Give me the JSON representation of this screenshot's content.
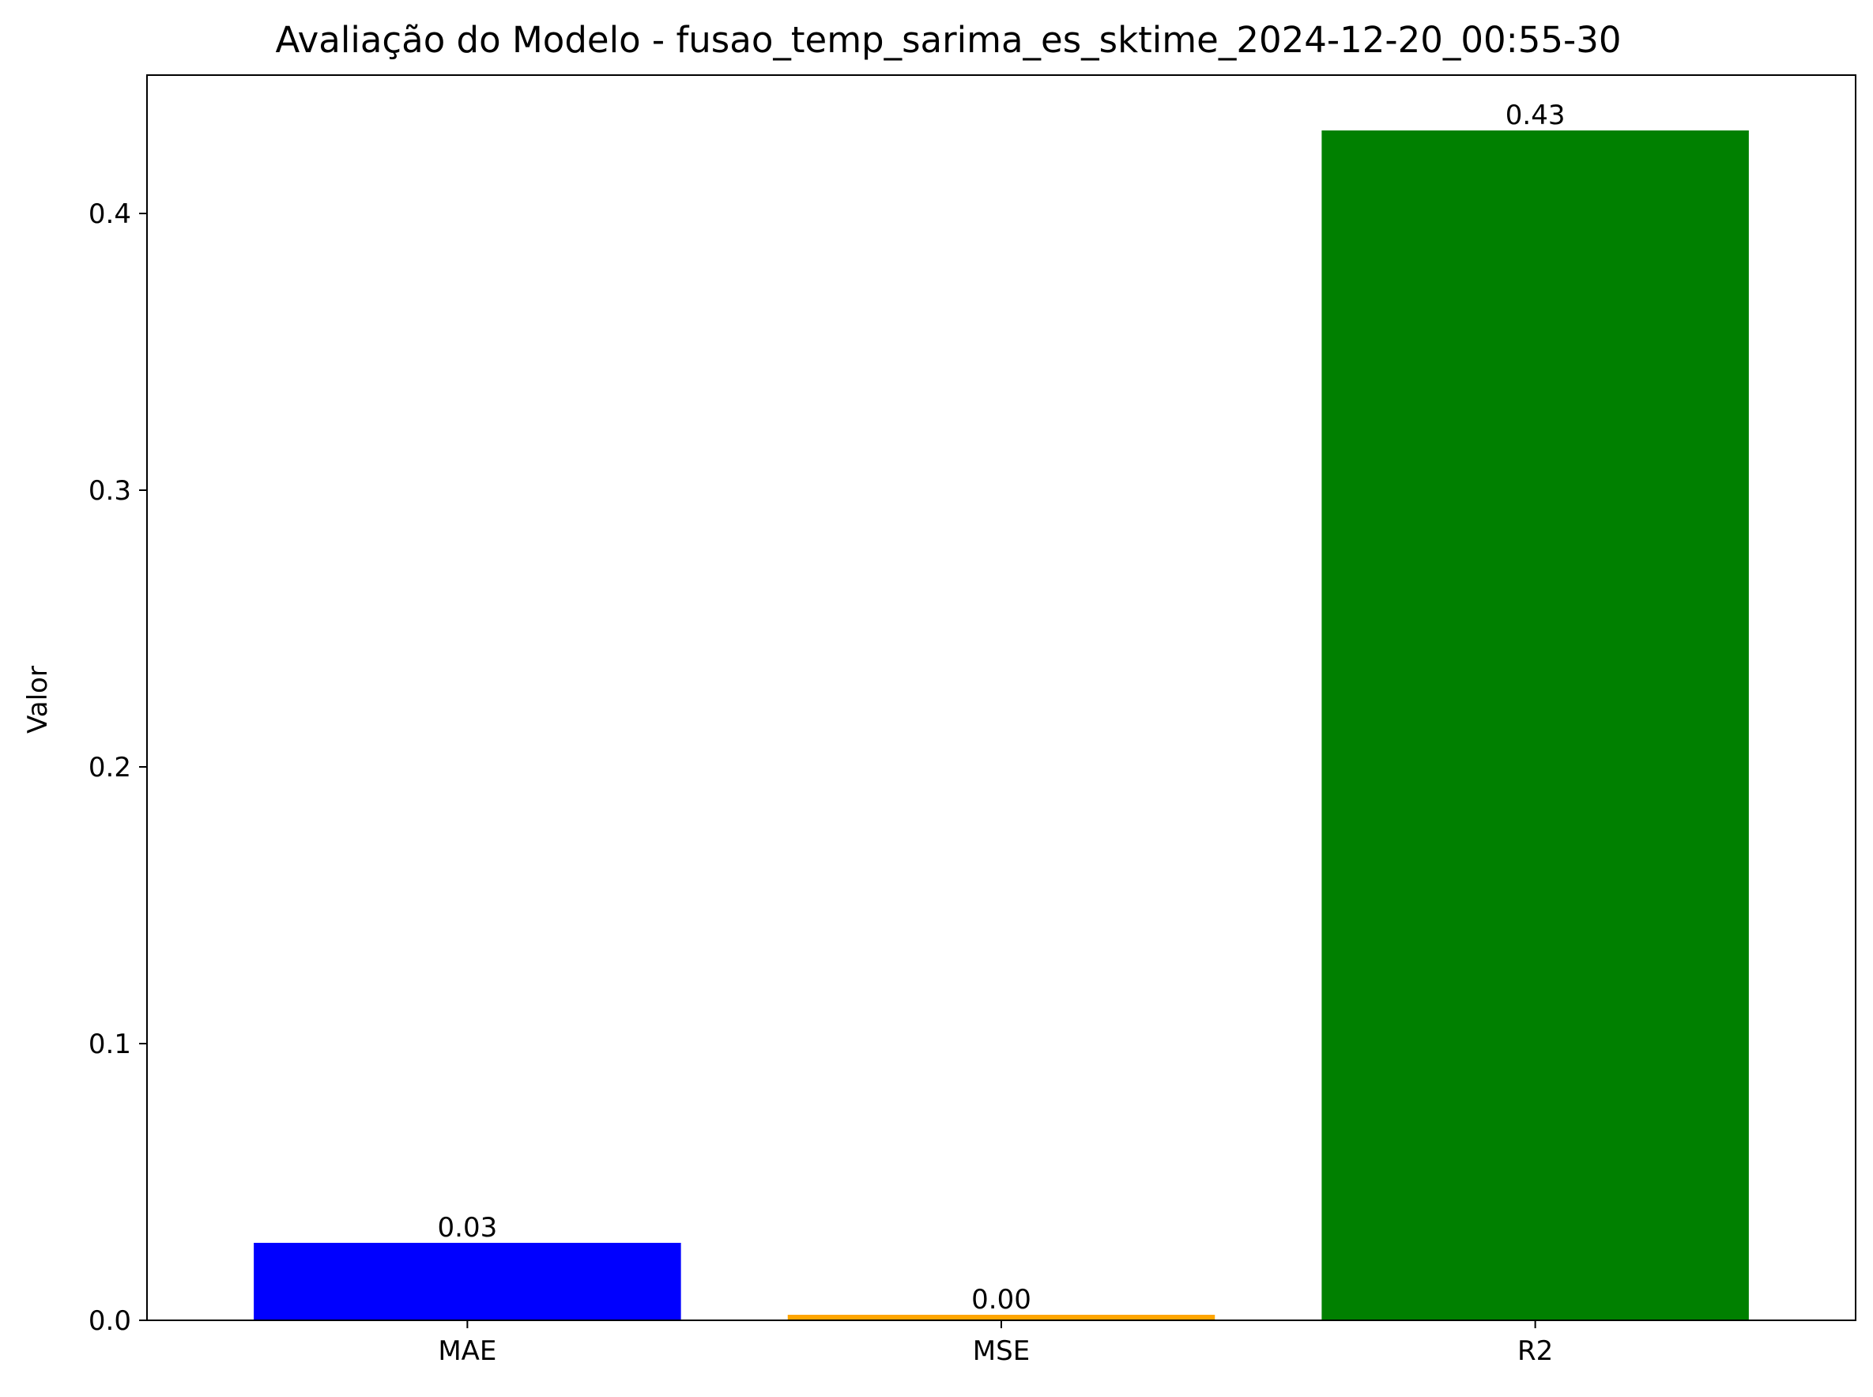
{
  "chart_data": {
    "type": "bar",
    "title": "Avaliação do Modelo - fusao_temp_sarima_es_sktime_2024-12-20_00:55-30",
    "xlabel": "",
    "ylabel": "Valor",
    "categories": [
      "MAE",
      "MSE",
      "R2"
    ],
    "values": [
      0.028,
      0.002,
      0.43
    ],
    "value_labels": [
      "0.03",
      "0.00",
      "0.43"
    ],
    "colors": [
      "#0000ff",
      "#ffa500",
      "#008000"
    ],
    "ylim": [
      0,
      0.45
    ],
    "yticks": [
      0.0,
      0.1,
      0.2,
      0.3,
      0.4
    ],
    "ytick_labels": [
      "0.0",
      "0.1",
      "0.2",
      "0.3",
      "0.4"
    ],
    "grid": false,
    "legend": "none"
  }
}
